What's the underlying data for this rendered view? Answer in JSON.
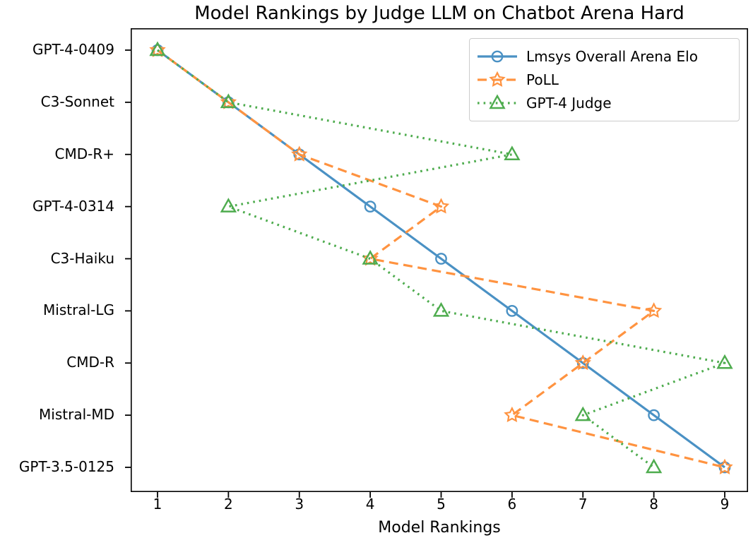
{
  "chart_data": {
    "type": "line",
    "title": "Model Rankings by Judge LLM on Chatbot Arena Hard",
    "xlabel": "Model Rankings",
    "ylabel": "",
    "categories": [
      "GPT-4-0409",
      "C3-Sonnet",
      "CMD-R+",
      "GPT-4-0314",
      "C3-Haiku",
      "Mistral-LG",
      "CMD-R",
      "Mistral-MD",
      "GPT-3.5-0125"
    ],
    "x_ticks": [
      1,
      2,
      3,
      4,
      5,
      6,
      7,
      8,
      9
    ],
    "xlim": [
      0.62,
      9.33
    ],
    "grid": false,
    "legend_position": "upper right",
    "axis_color": "#000000",
    "background_color": "#ffffff",
    "series": [
      {
        "name": "Lmsys Overall Arena Elo",
        "color": "#4A91C4",
        "line_style": "solid",
        "marker": "circle",
        "values": [
          1,
          2,
          3,
          4,
          5,
          6,
          7,
          8,
          9
        ]
      },
      {
        "name": "PoLL",
        "color": "#FF9340",
        "line_style": "dashed",
        "marker": "star",
        "values": [
          1,
          2,
          3,
          5,
          4,
          8,
          7,
          6,
          9
        ]
      },
      {
        "name": "GPT-4 Judge",
        "color": "#4EAC4E",
        "line_style": "dotted",
        "marker": "triangle",
        "values": [
          1,
          2,
          6,
          2,
          4,
          5,
          9,
          7,
          8
        ]
      }
    ]
  }
}
